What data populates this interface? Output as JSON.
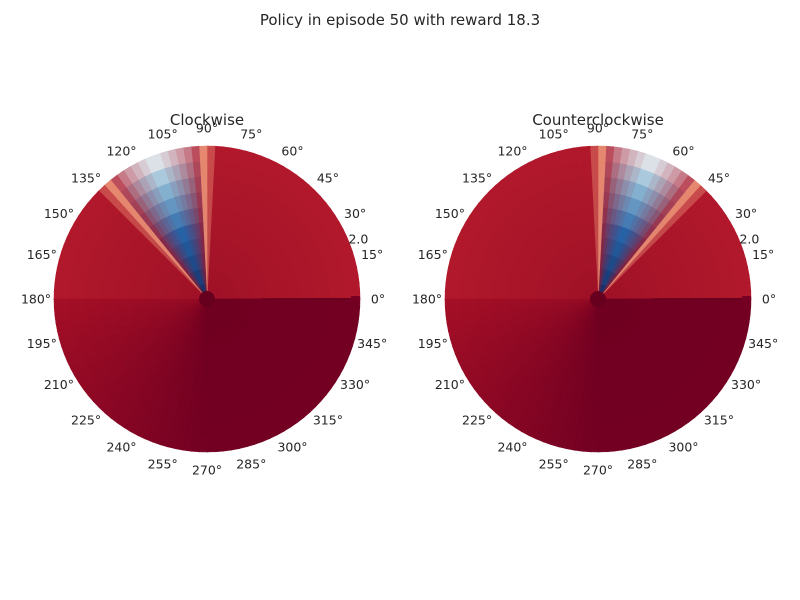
{
  "figure": {
    "title": "Policy in episode 50 with reward 18.3"
  },
  "chart_data": [
    {
      "type": "heatmap",
      "projection": "polar",
      "title": "Clockwise",
      "theta_tick_labels": [
        "0°",
        "15°",
        "30°",
        "45°",
        "60°",
        "75°",
        "90°",
        "105°",
        "120°",
        "135°",
        "150°",
        "165°",
        "180°",
        "195°",
        "210°",
        "225°",
        "240°",
        "255°",
        "270°",
        "285°",
        "300°",
        "315°",
        "330°",
        "345°"
      ],
      "r_tick_labels": [
        "2.0"
      ],
      "r_range": [
        0,
        2
      ],
      "colormap": "RdBu",
      "colormap_note": "color = action value; blue wedge between ~95° and ~130°",
      "blue_wedge_center_deg": 111,
      "blue_wedge_half_width_deg": 18,
      "grid": false
    },
    {
      "type": "heatmap",
      "projection": "polar",
      "title": "Counterclockwise",
      "theta_tick_labels": [
        "0°",
        "15°",
        "30°",
        "45°",
        "60°",
        "75°",
        "90°",
        "105°",
        "120°",
        "135°",
        "150°",
        "165°",
        "180°",
        "195°",
        "210°",
        "225°",
        "240°",
        "255°",
        "270°",
        "285°",
        "300°",
        "315°",
        "330°",
        "345°"
      ],
      "r_tick_labels": [
        "2.0"
      ],
      "r_range": [
        0,
        2
      ],
      "colormap": "RdBu",
      "colormap_note": "color = action value; blue wedge between ~50° and ~85°",
      "blue_wedge_center_deg": 69,
      "blue_wedge_half_width_deg": 18,
      "grid": false
    }
  ]
}
